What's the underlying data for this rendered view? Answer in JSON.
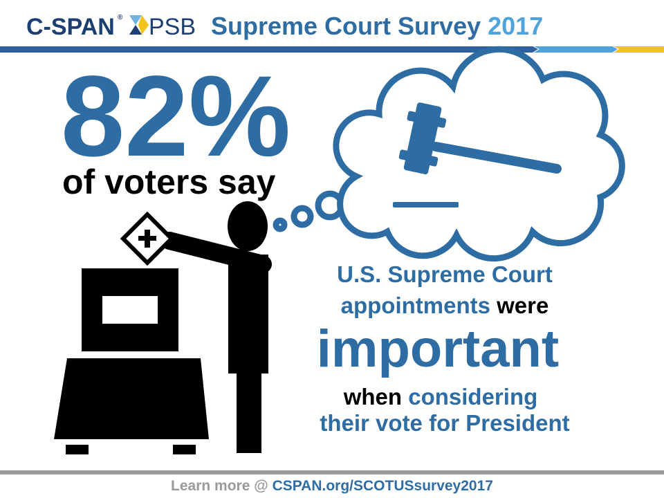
{
  "header": {
    "brand": "C-SPAN",
    "registered": "®",
    "partner": "PSB",
    "title": "Supreme Court Survey",
    "year": "2017"
  },
  "headline": {
    "stat": "82%",
    "subject": "of voters say"
  },
  "statement": {
    "line1": "U.S. Supreme Court",
    "line2_a": "appointments",
    "line2_b": "were",
    "line3": "important",
    "line4_a": "when",
    "line4_b": "considering",
    "line5": "their vote for President"
  },
  "footer": {
    "lead": "Learn more @",
    "link": "CSPAN.org/SCOTUSsurvey2017"
  }
}
